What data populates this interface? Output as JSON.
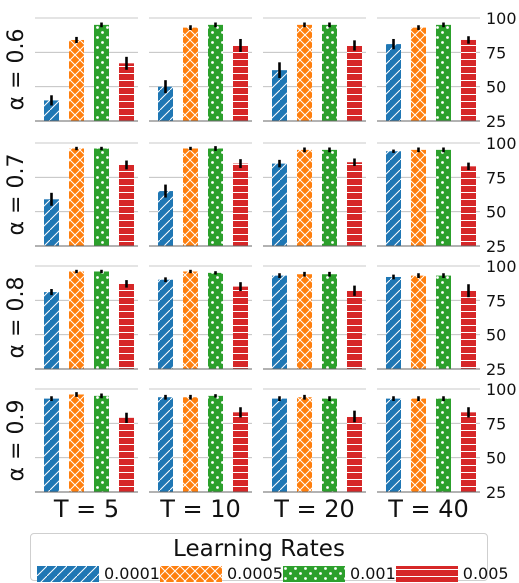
{
  "chart_data": {
    "type": "bar",
    "grid": true,
    "ylim": [
      25,
      100
    ],
    "yticks": [
      25,
      50,
      75,
      100
    ],
    "row_labels": [
      "α = 0.6",
      "α = 0.7",
      "α = 0.8",
      "α = 0.9"
    ],
    "col_labels": [
      "T = 5",
      "T = 10",
      "T = 20",
      "T = 40"
    ],
    "legend": {
      "title": "Learning Rates",
      "placement": "bottom",
      "entries": [
        "0.0001",
        "0.0005",
        "0.001",
        "0.005"
      ]
    },
    "series_colors": [
      "#1f77b4",
      "#ff7f0e",
      "#2ca02c",
      "#d62728"
    ],
    "series_hatches": [
      "diagonal",
      "cross",
      "dots",
      "horizontal"
    ],
    "panels": [
      [
        {
          "values": [
            40,
            84,
            95,
            67
          ],
          "errors": [
            3,
            1.5,
            1,
            4
          ]
        },
        {
          "values": [
            50,
            93,
            95,
            80
          ],
          "errors": [
            4,
            1,
            1,
            4
          ]
        },
        {
          "values": [
            62,
            95,
            95,
            80
          ],
          "errors": [
            5,
            1,
            1,
            3
          ]
        },
        {
          "values": [
            81,
            93,
            95,
            84
          ],
          "errors": [
            3,
            1,
            1,
            2
          ]
        }
      ],
      [
        {
          "values": [
            59,
            96,
            96,
            84
          ],
          "errors": [
            4,
            0.5,
            0.5,
            2.5
          ]
        },
        {
          "values": [
            65,
            96,
            96,
            85
          ],
          "errors": [
            4,
            0.5,
            1,
            2.5
          ]
        },
        {
          "values": [
            85,
            95,
            95,
            86
          ],
          "errors": [
            2,
            1,
            1,
            2
          ]
        },
        {
          "values": [
            94,
            95,
            95,
            83
          ],
          "errors": [
            0.5,
            1,
            1,
            2
          ]
        }
      ],
      [
        {
          "values": [
            81,
            96,
            96,
            87
          ],
          "errors": [
            1.5,
            0.5,
            0.5,
            2
          ]
        },
        {
          "values": [
            90,
            96,
            95,
            85
          ],
          "errors": [
            1,
            0.5,
            0.5,
            2.5
          ]
        },
        {
          "values": [
            93,
            94,
            94,
            82
          ],
          "errors": [
            1,
            1,
            1,
            3
          ]
        },
        {
          "values": [
            92,
            93,
            93,
            82
          ],
          "errors": [
            1,
            1,
            1,
            4
          ]
        }
      ],
      [
        {
          "values": [
            93,
            96,
            95,
            79
          ],
          "errors": [
            1,
            1,
            1,
            3
          ]
        },
        {
          "values": [
            94,
            94,
            95,
            83
          ],
          "errors": [
            1,
            1,
            0.5,
            3
          ]
        },
        {
          "values": [
            93,
            94,
            93,
            80
          ],
          "errors": [
            1,
            1,
            1,
            3.5
          ]
        },
        {
          "values": [
            93,
            93,
            93,
            83
          ],
          "errors": [
            1,
            1,
            1,
            3
          ]
        }
      ]
    ]
  }
}
